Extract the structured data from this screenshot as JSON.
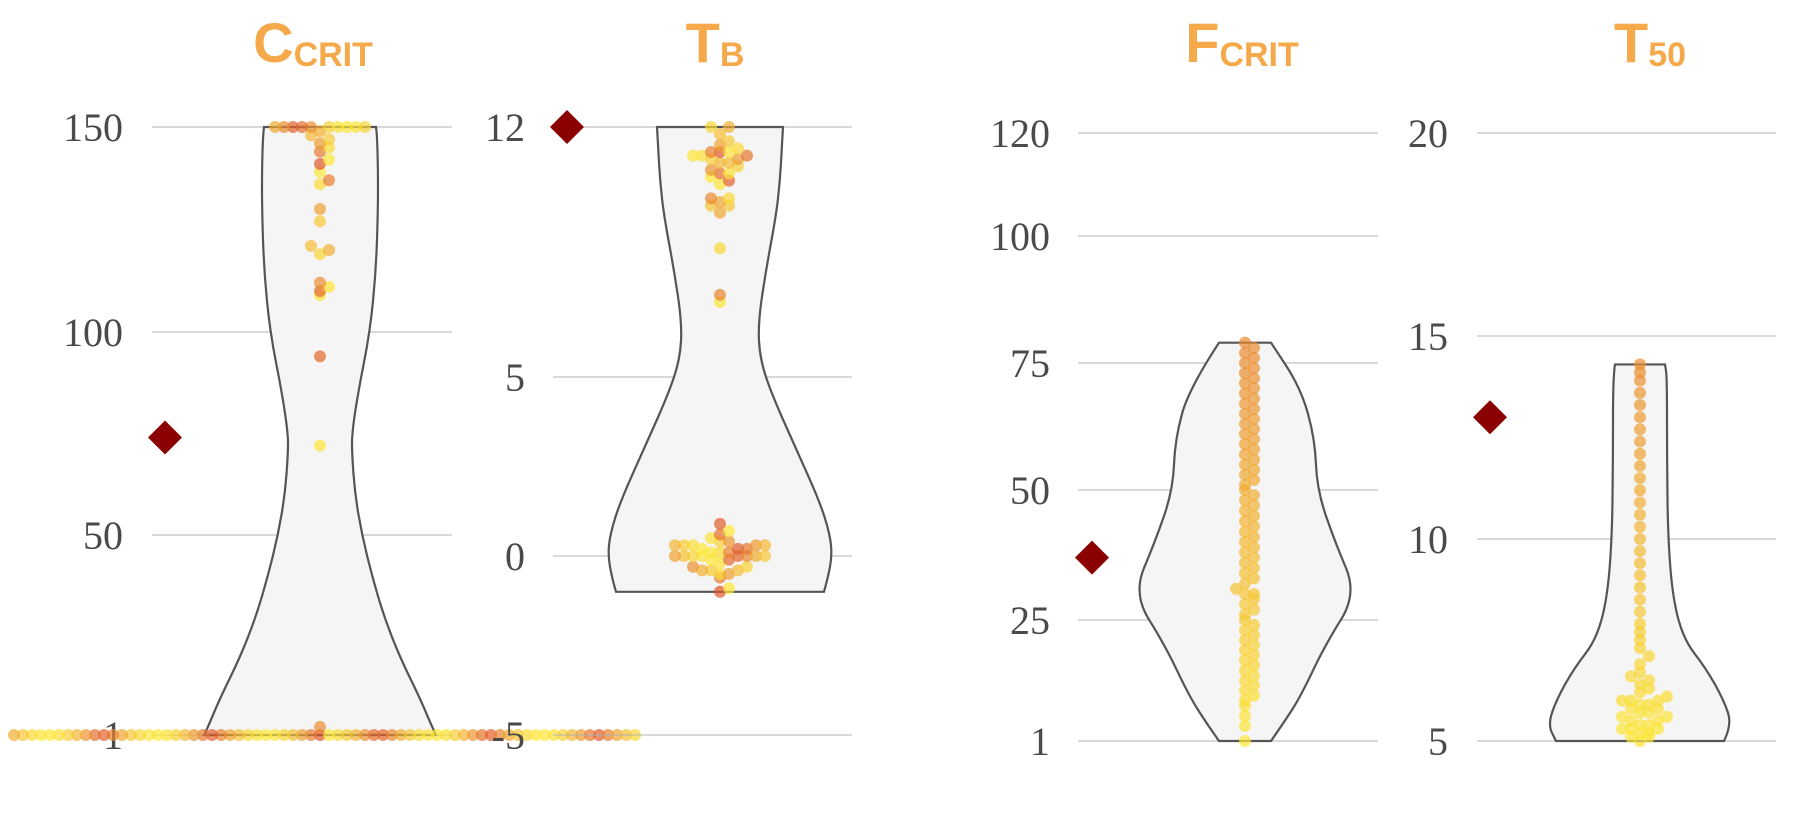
{
  "colors": {
    "title": "#f5a94b",
    "grid": "#b3b3b3",
    "violin_fill": "#f5f5f5",
    "violin_stroke": "#555555",
    "marker": "#8b0000",
    "point_low": "#fde836",
    "point_high": "#e0562b",
    "tick_text": "#4a4a4a"
  },
  "chart_data": [
    {
      "type": "violin",
      "title_main": "C",
      "title_sub": "CRIT",
      "yticks": [
        1,
        50,
        100,
        150
      ],
      "ylim": [
        1,
        150
      ],
      "grid": true,
      "reference_value": 74,
      "points": [
        1,
        1,
        1,
        1,
        1,
        1,
        1,
        1,
        1,
        1,
        1,
        1,
        1,
        1,
        1,
        1,
        1,
        1,
        1,
        1,
        1,
        1,
        1,
        1,
        1,
        1,
        1,
        1,
        1,
        1,
        1,
        1,
        1,
        1,
        1,
        1,
        1,
        1,
        1,
        1,
        1,
        1,
        1,
        1,
        1,
        1,
        1,
        1,
        1,
        1,
        1,
        1,
        1,
        1,
        1,
        1,
        1,
        1,
        1,
        1,
        1,
        1,
        1,
        1,
        1,
        1,
        1,
        1,
        1,
        1,
        3,
        72,
        94,
        109,
        110,
        111,
        112,
        119,
        120,
        121,
        127,
        130,
        136,
        137,
        139,
        141,
        142,
        144,
        145,
        146,
        147,
        148,
        149,
        150,
        150,
        150,
        150,
        150,
        150,
        150,
        150,
        150,
        150
      ]
    },
    {
      "type": "violin",
      "title_main": "T",
      "title_sub": "B",
      "yticks": [
        -5,
        0,
        5,
        12
      ],
      "ylim": [
        -5,
        12
      ],
      "grid": true,
      "reference_value": 12,
      "points": [
        -1,
        -0.9,
        -0.6,
        -0.5,
        -0.5,
        -0.4,
        -0.4,
        -0.4,
        -0.3,
        -0.3,
        -0.2,
        -0.1,
        -0.1,
        0,
        0,
        0,
        0,
        0,
        0,
        0,
        0,
        0.1,
        0.1,
        0.1,
        0.2,
        0.2,
        0.2,
        0.3,
        0.3,
        0.3,
        0.3,
        0.3,
        0.4,
        0.4,
        0.5,
        0.6,
        0.7,
        0.9,
        7.1,
        7.3,
        8.6,
        9.6,
        9.8,
        9.8,
        9.9,
        10,
        10,
        10.4,
        10.5,
        10.6,
        10.7,
        10.7,
        10.8,
        10.9,
        11,
        11,
        11.1,
        11.1,
        11.2,
        11.2,
        11.2,
        11.3,
        11.3,
        11.3,
        11.4,
        11.5,
        11.6,
        11.8,
        12,
        12
      ]
    },
    {
      "type": "violin",
      "title_main": "F",
      "title_sub": "CRIT",
      "yticks": [
        1,
        25,
        50,
        75,
        100,
        120
      ],
      "ylim": [
        1,
        120
      ],
      "grid": true,
      "reference_value": 37,
      "points": [
        1,
        4,
        6,
        8,
        9,
        10,
        11,
        12,
        13,
        14,
        15,
        16,
        17,
        18,
        19,
        20,
        21,
        22,
        23,
        24,
        25,
        26,
        27,
        28,
        29,
        30,
        30,
        31,
        32,
        33,
        34,
        35,
        36,
        37,
        38,
        39,
        40,
        41,
        42,
        43,
        44,
        45,
        46,
        47,
        48,
        49,
        50,
        51,
        52,
        53,
        54,
        55,
        56,
        57,
        58,
        59,
        60,
        61,
        62,
        63,
        64,
        65,
        66,
        67,
        68,
        69,
        70,
        71,
        72,
        73,
        74,
        75,
        76,
        77,
        78,
        79
      ]
    },
    {
      "type": "violin",
      "title_main": "T",
      "title_sub": "50",
      "yticks": [
        5,
        10,
        15,
        20
      ],
      "ylim": [
        5,
        20
      ],
      "grid": true,
      "reference_value": 13,
      "points": [
        5,
        5.1,
        5.1,
        5.2,
        5.2,
        5.3,
        5.3,
        5.3,
        5.4,
        5.4,
        5.5,
        5.5,
        5.6,
        5.6,
        5.7,
        5.7,
        5.8,
        5.8,
        5.9,
        5.9,
        6,
        6,
        6,
        6.1,
        6.2,
        6.3,
        6.4,
        6.5,
        6.6,
        6.7,
        6.9,
        7.1,
        7.3,
        7.5,
        7.7,
        7.9,
        8.2,
        8.5,
        8.8,
        9.1,
        9.4,
        9.7,
        10,
        10.3,
        10.6,
        10.9,
        11.2,
        11.5,
        11.8,
        12.1,
        12.4,
        12.7,
        13,
        13.3,
        13.6,
        13.9,
        14.1,
        14.3
      ]
    }
  ]
}
